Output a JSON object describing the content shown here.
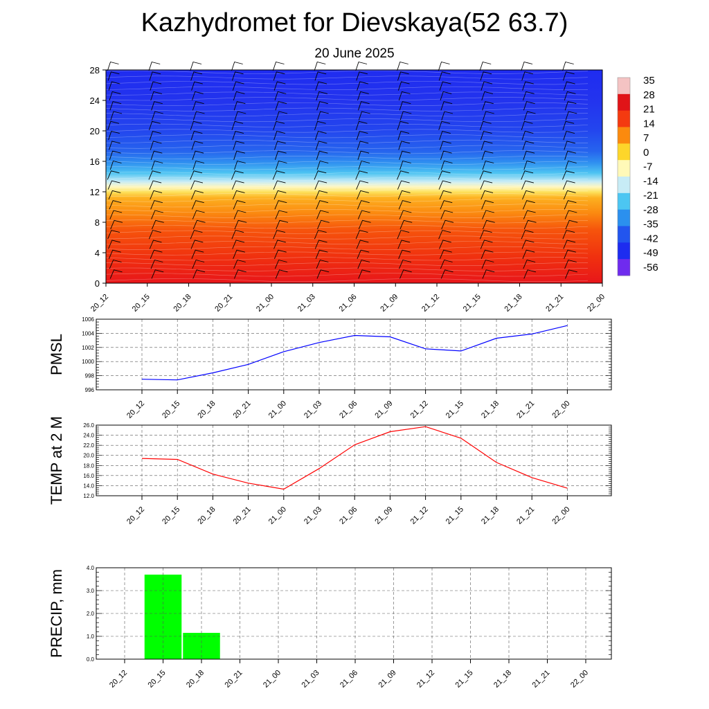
{
  "title": "Kazhydromet for Dievskaya(52 63.7)",
  "subtitle": "20 June 2025",
  "chart_data": [
    {
      "type": "heatmap",
      "description_units": "temperature cross-section with wind barbs",
      "x_tick_labels": [
        "20_12",
        "20_15",
        "20_18",
        "20_21",
        "21_00",
        "21_03",
        "21_06",
        "21_09",
        "21_12",
        "21_15",
        "21_18",
        "21_21",
        "22_00"
      ],
      "y_ticks": [
        0,
        4,
        8,
        12,
        16,
        20,
        24,
        28
      ],
      "ylim": [
        0,
        28
      ],
      "colorbar_labels": [
        "35",
        "28",
        "21",
        "14",
        "7",
        "0",
        "-7",
        "-14",
        "-21",
        "-28",
        "-35",
        "-42",
        "-49",
        "-56"
      ],
      "colorbar_colors": [
        "#f4c3c3",
        "#e01418",
        "#f43a10",
        "#fb8a0e",
        "#fdd62a",
        "#fff9b8",
        "#c7ecf6",
        "#4cc6f2",
        "#2b90ee",
        "#2255ee",
        "#1d2cf0",
        "#6f2bee"
      ],
      "freezing_level_approx": 12.5,
      "wind_barbs": true,
      "barb_color": "#000000"
    },
    {
      "type": "line",
      "ylabel": "PMSL",
      "categories": [
        "20_12",
        "20_15",
        "20_18",
        "20_21",
        "21_00",
        "21_03",
        "21_06",
        "21_09",
        "21_12",
        "21_15",
        "21_18",
        "21_21",
        "22_00"
      ],
      "values": [
        997.5,
        997.4,
        998.4,
        999.6,
        1001.4,
        1002.7,
        1003.7,
        1003.5,
        1001.8,
        1001.5,
        1003.3,
        1003.9,
        1005.1
      ],
      "ylim": [
        996,
        1006
      ],
      "y_ticks": [
        "996",
        "998",
        "1000",
        "1002",
        "1004",
        "1006"
      ],
      "color": "#0000ff",
      "grid": true
    },
    {
      "type": "line",
      "ylabel": "TEMP at 2 M",
      "categories": [
        "20_12",
        "20_15",
        "20_18",
        "20_21",
        "21_00",
        "21_03",
        "21_06",
        "21_09",
        "21_12",
        "21_15",
        "21_18",
        "21_21",
        "22_00"
      ],
      "values": [
        19.4,
        19.2,
        16.3,
        14.5,
        13.3,
        17.4,
        22.1,
        24.7,
        25.7,
        23.4,
        18.6,
        15.6,
        13.5
      ],
      "ylim": [
        12,
        26
      ],
      "y_ticks": [
        "12.0",
        "14.0",
        "16.0",
        "18.0",
        "20.0",
        "22.0",
        "24.0",
        "26.0"
      ],
      "color": "#ff0000",
      "grid": true
    },
    {
      "type": "bar",
      "ylabel": "PRECIP, mm",
      "categories": [
        "20_12",
        "20_15",
        "20_18",
        "20_21",
        "21_00",
        "21_03",
        "21_06",
        "21_09",
        "21_12",
        "21_15",
        "21_18",
        "21_21",
        "22_00"
      ],
      "values": [
        0,
        3.7,
        1.15,
        0,
        0,
        0,
        0,
        0,
        0,
        0,
        0,
        0,
        0
      ],
      "ylim": [
        0,
        4
      ],
      "y_ticks": [
        "0.0",
        "1.0",
        "2.0",
        "3.0",
        "4.0"
      ],
      "color": "#00ff00",
      "grid": true
    }
  ]
}
